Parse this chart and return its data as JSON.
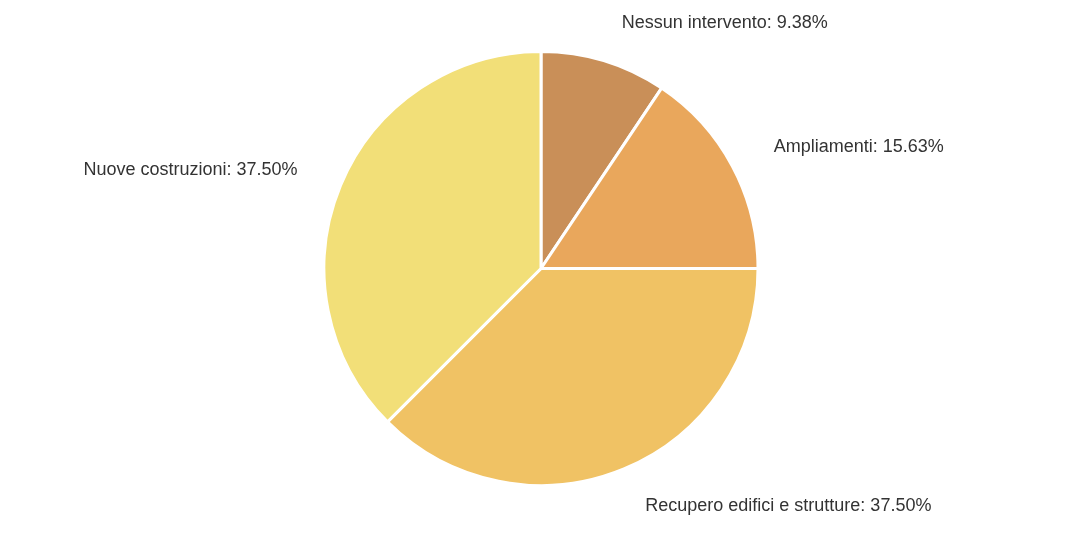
{
  "chart_data": {
    "type": "pie",
    "categories": [
      "Nessun intervento",
      "Ampliamenti",
      "Recupero edifici e strutture",
      "Nuove costruzioni"
    ],
    "values": [
      9.38,
      15.63,
      37.5,
      37.5
    ],
    "value_labels": [
      "9.38%",
      "15.63%",
      "37.50%",
      "37.50%"
    ],
    "colors": [
      "#c98f58",
      "#e9a75c",
      "#f0c264",
      "#f2df78"
    ],
    "legend": false
  }
}
